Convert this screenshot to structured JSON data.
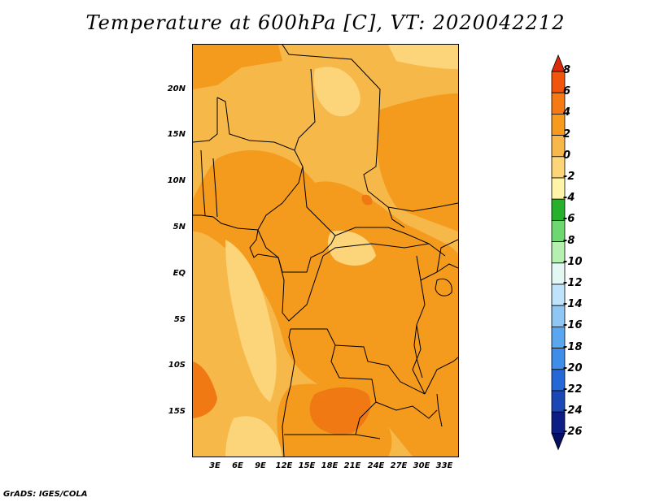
{
  "title": "Temperature at 600hPa [C], VT: 2020042212",
  "credit": "GrADS: IGES/COLA",
  "map": {
    "lat_ticks": [
      "20N",
      "15N",
      "10N",
      "5N",
      "EQ",
      "5S",
      "10S",
      "15S"
    ],
    "lon_ticks": [
      "3E",
      "6E",
      "9E",
      "12E",
      "15E",
      "18E",
      "21E",
      "24E",
      "27E",
      "30E",
      "33E"
    ],
    "dominant_field_colors": [
      "#f7b84a",
      "#f49b1d",
      "#fcd57a",
      "#f07914"
    ]
  },
  "colorbar": {
    "levels": [
      "8",
      "6",
      "4",
      "2",
      "0",
      "-2",
      "-4",
      "-6",
      "-8",
      "-10",
      "-12",
      "-14",
      "-16",
      "-18",
      "-20",
      "-22",
      "-24",
      "-26"
    ],
    "colors": [
      "#dd2a0a",
      "#f1550c",
      "#f57a15",
      "#f79b1f",
      "#f8b74a",
      "#fbd577",
      "#fef3a7",
      "#27b02c",
      "#6fd76f",
      "#b6f0b0",
      "#e3f8f4",
      "#bfe3fa",
      "#8ec7f4",
      "#5aa7ef",
      "#3d8de9",
      "#2567d7",
      "#1b47b5",
      "#0e1d86",
      "#061062"
    ]
  }
}
